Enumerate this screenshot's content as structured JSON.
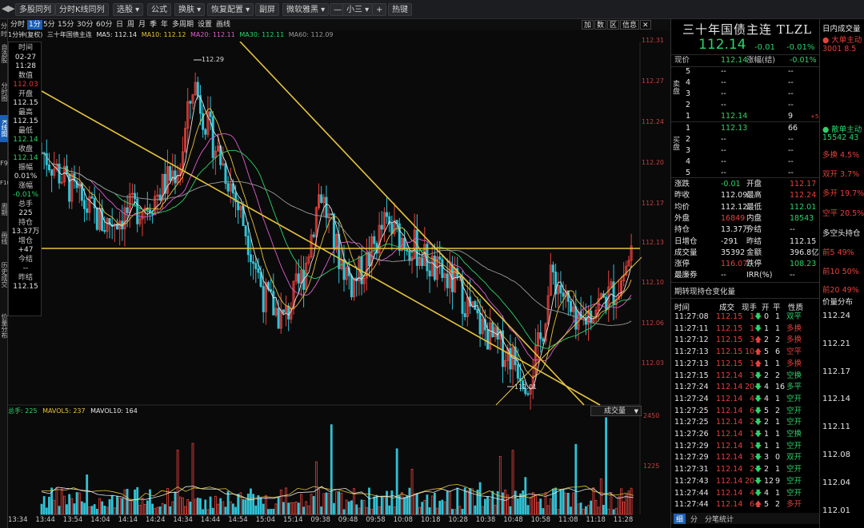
{
  "toolbar": {
    "buttons": [
      "多股同列",
      "分时K线同列",
      "选股 ▾",
      "公式",
      "换肤 ▾",
      "恢复配置 ▾",
      "副屏",
      "微软雅黑 ▾",
      "—",
      "小三 ▾",
      "+",
      "热键"
    ]
  },
  "left_tabs": [
    "分时",
    "自选股",
    "分时图",
    "K线图",
    "F9",
    "F10",
    "周期",
    "画线",
    "历史成交",
    "价量分布"
  ],
  "periods": [
    "分时",
    "1分",
    "5分",
    "15分",
    "30分",
    "60分",
    "日",
    "周",
    "月",
    "季",
    "年",
    "多周期",
    "设置",
    "画线"
  ],
  "active_period": "1分",
  "chart_icons": [
    "加",
    "数",
    "区",
    "信息"
  ],
  "ma_bar": {
    "prefix": "1分钟(复权)",
    "name": "三十年国债主连",
    "items": [
      {
        "label": "MA5: 112.14",
        "color": "#e6e6e6"
      },
      {
        "label": "MA10: 112.12",
        "color": "#e6c43a"
      },
      {
        "label": "MA20: 112.11",
        "color": "#e05dd0"
      },
      {
        "label": "MA30: 112.11",
        "color": "#2bd46a"
      },
      {
        "label": "MA60: 112.09",
        "color": "#9a9a9a"
      }
    ]
  },
  "info_panel": [
    {
      "label": "时间",
      "value": "02-27"
    },
    {
      "label": "",
      "value": "11:28"
    },
    {
      "label": "数值",
      "value": "112.03",
      "color": "red"
    },
    {
      "label": "开盘",
      "value": "112.15"
    },
    {
      "label": "最高",
      "value": "112.15"
    },
    {
      "label": "最低",
      "value": "112.14",
      "color": "grn"
    },
    {
      "label": "收盘",
      "value": "112.14",
      "color": "grn"
    },
    {
      "label": "振幅",
      "value": "0.01%"
    },
    {
      "label": "涨幅",
      "value": "-0.01%",
      "color": "grn"
    },
    {
      "label": "总手",
      "value": "225"
    },
    {
      "label": "持仓",
      "value": "13.37万"
    },
    {
      "label": "增仓",
      "value": "+47"
    },
    {
      "label": "今结",
      "value": "--"
    },
    {
      "label": "昨结",
      "value": "112.15"
    }
  ],
  "price_axis": [
    "112.31",
    "112.27",
    "112.24",
    "112.20",
    "112.17",
    "112.13",
    "112.10",
    "112.06",
    "112.03"
  ],
  "volume_axis": [
    "2450",
    "1225"
  ],
  "volume_legend": {
    "label": "总手: 225",
    "mavol5": "MAVOL5: 237",
    "mavol10": "MAVOL10: 164"
  },
  "volume_select": "成交量",
  "time_axis": [
    "13:34",
    "13:44",
    "13:54",
    "14:04",
    "14:14",
    "14:24",
    "14:34",
    "14:44",
    "14:54",
    "15:04",
    "15:14",
    "09:38",
    "09:48",
    "09:58",
    "10:08",
    "10:18",
    "10:28",
    "10:38",
    "10:48",
    "10:58",
    "11:08",
    "11:18",
    "11:28"
  ],
  "annotations": {
    "high": "112.29",
    "low": "112.01"
  },
  "quote": {
    "title": "三十年国债主连 TLZL",
    "price": "112.14",
    "change": "-0.01",
    "change_pct": "-0.01%",
    "header_left": "现价",
    "header_mid": "112.14",
    "header_label": "涨幅(结)",
    "header_right": "-0.01%",
    "sell_label": "卖盘",
    "buy_label": "买盘",
    "sells": [
      {
        "n": "5",
        "p": "--",
        "v": "--",
        "d": ""
      },
      {
        "n": "4",
        "p": "--",
        "v": "--",
        "d": ""
      },
      {
        "n": "3",
        "p": "--",
        "v": "--",
        "d": ""
      },
      {
        "n": "2",
        "p": "--",
        "v": "--",
        "d": ""
      },
      {
        "n": "1",
        "p": "112.14",
        "v": "9",
        "d": "+5"
      }
    ],
    "buys": [
      {
        "n": "1",
        "p": "112.13",
        "v": "66",
        "d": ""
      },
      {
        "n": "2",
        "p": "--",
        "v": "--",
        "d": ""
      },
      {
        "n": "3",
        "p": "--",
        "v": "--",
        "d": ""
      },
      {
        "n": "4",
        "p": "--",
        "v": "--",
        "d": ""
      },
      {
        "n": "5",
        "p": "--",
        "v": "--",
        "d": ""
      }
    ],
    "stats": [
      {
        "l1": "涨跌",
        "v1": "-0.01",
        "c1": "grn",
        "l2": "开盘",
        "v2": "112.17",
        "c2": "red"
      },
      {
        "l1": "昨收",
        "v1": "112.09",
        "c1": "wht",
        "l2": "最高",
        "v2": "112.24",
        "c2": "red"
      },
      {
        "l1": "均价",
        "v1": "112.12",
        "c1": "wht",
        "l2": "最低",
        "v2": "112.01",
        "c2": "grn"
      },
      {
        "l1": "外盘",
        "v1": "16849",
        "c1": "red",
        "l2": "内盘",
        "v2": "18543",
        "c2": "grn"
      },
      {
        "l1": "持仓",
        "v1": "13.37万",
        "c1": "wht",
        "l2": "今结",
        "v2": "--",
        "c2": "wht"
      },
      {
        "l1": "日增仓",
        "v1": "-291",
        "c1": "wht",
        "l2": "昨结",
        "v2": "112.15",
        "c2": "wht"
      },
      {
        "l1": "成交量",
        "v1": "35392",
        "c1": "wht",
        "l2": "金额",
        "v2": "396.8亿",
        "c2": "wht"
      },
      {
        "l1": "涨停",
        "v1": "116.07",
        "c1": "red",
        "l2": "跌停",
        "v2": "108.23",
        "c2": "grn"
      },
      {
        "l1": "最廉券",
        "v1": "--",
        "c1": "wht",
        "l2": "IRR(%)",
        "v2": "--",
        "c2": "wht"
      }
    ],
    "section_label": "期转现持仓变化量",
    "ticks_header": [
      "时间",
      "成交",
      "现手",
      "开",
      "平",
      "性质"
    ],
    "ticks": [
      {
        "t": "11:27:08",
        "p": "112.15",
        "v": "1",
        "dir": "down",
        "o": "0",
        "c": "1",
        "k": "双平",
        "kc": "grn"
      },
      {
        "t": "11:27:11",
        "p": "112.15",
        "v": "1",
        "dir": "down",
        "o": "1",
        "c": "1",
        "k": "多换",
        "kc": "red"
      },
      {
        "t": "11:27:12",
        "p": "112.15",
        "v": "3",
        "dir": "up",
        "o": "2",
        "c": "2",
        "k": "多换",
        "kc": "red"
      },
      {
        "t": "11:27:13",
        "p": "112.15",
        "v": "10",
        "dir": "up",
        "o": "5",
        "c": "6",
        "k": "空平",
        "kc": "red"
      },
      {
        "t": "11:27:13",
        "p": "112.15",
        "v": "1",
        "dir": "up",
        "o": "1",
        "c": "1",
        "k": "多换",
        "kc": "red"
      },
      {
        "t": "11:27:15",
        "p": "112.14",
        "v": "3",
        "dir": "down",
        "o": "2",
        "c": "2",
        "k": "空换",
        "kc": "grn"
      },
      {
        "t": "11:27:24",
        "p": "112.14",
        "v": "20",
        "dir": "down",
        "o": "4",
        "c": "16",
        "k": "多平",
        "kc": "grn"
      },
      {
        "t": "11:27:24",
        "p": "112.14",
        "v": "4",
        "dir": "down",
        "o": "4",
        "c": "1",
        "k": "空开",
        "kc": "grn"
      },
      {
        "t": "11:27:25",
        "p": "112.14",
        "v": "6",
        "dir": "down",
        "o": "5",
        "c": "2",
        "k": "空开",
        "kc": "grn"
      },
      {
        "t": "11:27:25",
        "p": "112.14",
        "v": "2",
        "dir": "down",
        "o": "2",
        "c": "1",
        "k": "空开",
        "kc": "grn"
      },
      {
        "t": "11:27:26",
        "p": "112.14",
        "v": "1",
        "dir": "down",
        "o": "1",
        "c": "1",
        "k": "空换",
        "kc": "grn"
      },
      {
        "t": "11:27:29",
        "p": "112.14",
        "v": "1",
        "dir": "down",
        "o": "1",
        "c": "1",
        "k": "空开",
        "kc": "grn"
      },
      {
        "t": "11:27:29",
        "p": "112.14",
        "v": "3",
        "dir": "down",
        "o": "3",
        "c": "0",
        "k": "双开",
        "kc": "grn"
      },
      {
        "t": "11:27:31",
        "p": "112.14",
        "v": "2",
        "dir": "down",
        "o": "2",
        "c": "1",
        "k": "空开",
        "kc": "grn"
      },
      {
        "t": "11:27:43",
        "p": "112.14",
        "v": "20",
        "dir": "down",
        "o": "12",
        "c": "9",
        "k": "空开",
        "kc": "grn"
      },
      {
        "t": "11:27:44",
        "p": "112.14",
        "v": "4",
        "dir": "down",
        "o": "4",
        "c": "1",
        "k": "空开",
        "kc": "grn"
      },
      {
        "t": "11:27:44",
        "p": "112.14",
        "v": "6",
        "dir": "up",
        "o": "5",
        "c": "2",
        "k": "多开",
        "kc": "red"
      }
    ],
    "bottom_tabs": [
      "细",
      "分",
      "分笔统计"
    ]
  },
  "far_right": {
    "title": "日内成交量",
    "items": [
      {
        "text": "● 大单主动",
        "color": "red"
      },
      {
        "text": "3001 8.5",
        "color": "red"
      },
      {
        "text": "● 散单主动",
        "color": "grn"
      },
      {
        "text": "15542 43",
        "color": "grn"
      },
      {
        "text": "多换 4.5%",
        "color": "red"
      },
      {
        "text": "双开 3.7%",
        "color": "red"
      },
      {
        "text": "多开 19.7%",
        "color": "red"
      },
      {
        "text": "空平 20.5%",
        "color": "red"
      },
      {
        "text": "多空头持仓",
        "color": "wht"
      },
      {
        "text": "前5 49%",
        "color": "red"
      },
      {
        "text": "前10 50%",
        "color": "red"
      },
      {
        "text": "前20 49%",
        "color": "red"
      },
      {
        "text": "价量分布",
        "color": "wht"
      }
    ],
    "price_levels": [
      "112.24",
      "112.21",
      "112.17",
      "112.14",
      "112.11",
      "112.08",
      "112.04",
      "112.01"
    ]
  },
  "chart_data": {
    "type": "candlestick",
    "price_range": [
      112.01,
      112.31
    ],
    "high_marker": 112.29,
    "low_marker": 112.01,
    "horizontal_line": 112.14,
    "volume_range": [
      0,
      2450
    ]
  }
}
